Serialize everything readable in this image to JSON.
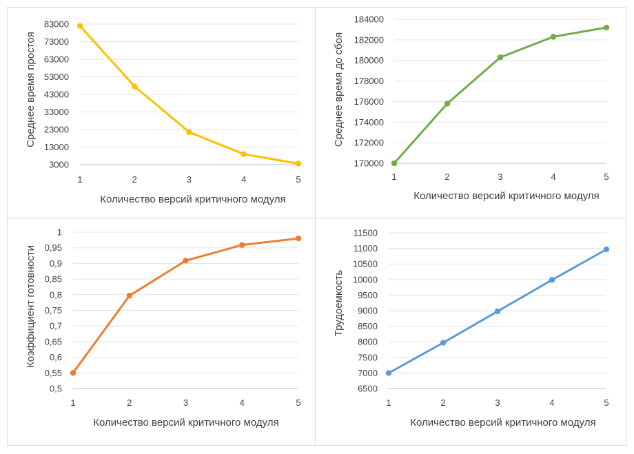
{
  "chart_data": [
    {
      "type": "line",
      "title": "",
      "xlabel": "Количество версий критичного модуля",
      "ylabel": "Среднее время простоя",
      "x": [
        1,
        2,
        3,
        4,
        5
      ],
      "series": [
        {
          "name": "Среднее время простоя",
          "values": [
            82000,
            47500,
            21500,
            9000,
            3600
          ]
        }
      ],
      "ylim": [
        3000,
        83000
      ],
      "yticks": [
        3000,
        13000,
        23000,
        33000,
        43000,
        53000,
        63000,
        73000,
        83000
      ],
      "ytick_labels": [
        "3000",
        "13000",
        "23000",
        "33000",
        "43000",
        "53000",
        "63000",
        "73000",
        "83000"
      ],
      "xtick_labels": [
        "1",
        "2",
        "3",
        "4",
        "5"
      ],
      "color": "#ffc000",
      "grid": true
    },
    {
      "type": "line",
      "title": "",
      "xlabel": "Количество версий критичного модуля",
      "ylabel": "Среднее время до сбоя",
      "x": [
        1,
        2,
        3,
        4,
        5
      ],
      "series": [
        {
          "name": "Среднее время до сбоя",
          "values": [
            170000,
            175800,
            180300,
            182300,
            183200
          ]
        }
      ],
      "ylim": [
        170000,
        184000
      ],
      "yticks": [
        170000,
        172000,
        174000,
        176000,
        178000,
        180000,
        182000,
        184000
      ],
      "ytick_labels": [
        "170000",
        "172000",
        "174000",
        "176000",
        "178000",
        "180000",
        "182000",
        "184000"
      ],
      "xtick_labels": [
        "1",
        "2",
        "3",
        "4",
        "5"
      ],
      "color": "#70ad47",
      "grid": true
    },
    {
      "type": "line",
      "title": "",
      "xlabel": "Количество версий критичного модуля",
      "ylabel": "Коэффициент готовности",
      "x": [
        1,
        2,
        3,
        4,
        5
      ],
      "series": [
        {
          "name": "Коэффициент готовности",
          "values": [
            0.55,
            0.797,
            0.909,
            0.959,
            0.98
          ]
        }
      ],
      "ylim": [
        0.5,
        1
      ],
      "yticks": [
        0.5,
        0.55,
        0.6,
        0.65,
        0.7,
        0.75,
        0.8,
        0.85,
        0.9,
        0.95,
        1
      ],
      "ytick_labels": [
        "0,5",
        "0,55",
        "0,6",
        "0,65",
        "0,7",
        "0,75",
        "0,8",
        "0,85",
        "0,9",
        "0,95",
        "1"
      ],
      "xtick_labels": [
        "1",
        "2",
        "3",
        "4",
        "5"
      ],
      "color": "#ed7d31",
      "grid": true
    },
    {
      "type": "line",
      "title": "",
      "xlabel": "Количество версий критичного модуля",
      "ylabel": "Трудоемкость",
      "x": [
        1,
        2,
        3,
        4,
        5
      ],
      "series": [
        {
          "name": "Трудоемкость",
          "values": [
            7000,
            7970,
            8980,
            9990,
            10970
          ]
        }
      ],
      "ylim": [
        6500,
        11500
      ],
      "yticks": [
        6500,
        7000,
        7500,
        8000,
        8500,
        9000,
        9500,
        10000,
        10500,
        11000,
        11500
      ],
      "ytick_labels": [
        "6500",
        "7000",
        "7500",
        "8000",
        "8500",
        "9000",
        "9500",
        "10000",
        "10500",
        "11000",
        "11500"
      ],
      "xtick_labels": [
        "1",
        "2",
        "3",
        "4",
        "5"
      ],
      "color": "#5b9bd5",
      "grid": true
    }
  ]
}
